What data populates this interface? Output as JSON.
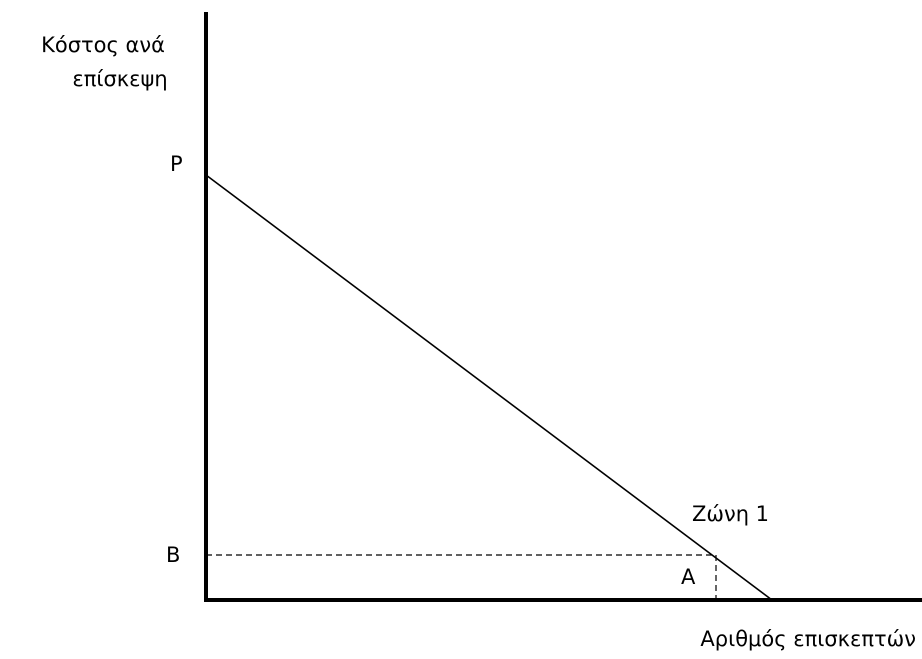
{
  "y_axis": {
    "label_lines": [
      "Κόστος ανά",
      "επίσκεψη"
    ]
  },
  "x_axis": {
    "label": "Αριθμός επισκεπτών"
  },
  "points": {
    "p": "P",
    "b": "B",
    "a": "A"
  },
  "curve_label": "Ζώνη 1"
}
